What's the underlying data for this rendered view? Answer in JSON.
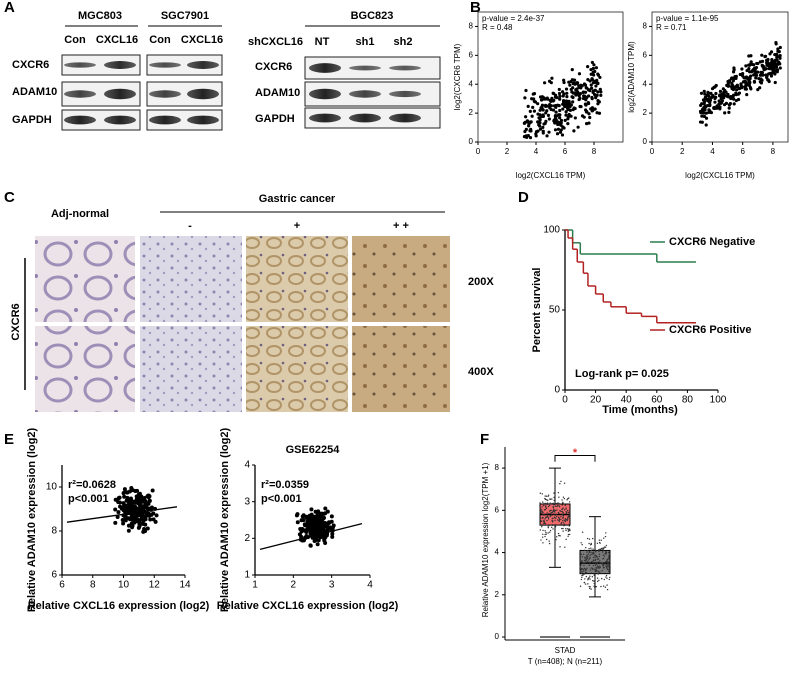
{
  "panels": {
    "A": {
      "label": "A",
      "left": {
        "lines": [
          {
            "name": "MGC803",
            "conditions": [
              "Con",
              "CXCL16"
            ]
          },
          {
            "name": "SGC7901",
            "conditions": [
              "Con",
              "CXCL16"
            ]
          }
        ],
        "rows": [
          "CXCR6",
          "ADAM10",
          "GAPDH"
        ]
      },
      "right": {
        "line": "BGC823",
        "treatment": "shCXCL16",
        "conditions": [
          "NT",
          "sh1",
          "sh2"
        ],
        "rows": [
          "CXCR6",
          "ADAM10",
          "GAPDH"
        ]
      }
    },
    "B": {
      "label": "B",
      "plots": [
        {
          "stats": [
            "p-value = 2.4e-37",
            "R = 0.48"
          ],
          "y_label": "log2(CXCR6 TPM)",
          "x_label": "log2(CXCL16 TPM)",
          "xlim": [
            0,
            10
          ],
          "ylim": [
            0,
            9
          ],
          "xticks": [
            0,
            2,
            4,
            6,
            8
          ],
          "yticks": [
            0,
            2,
            4,
            6,
            8
          ]
        },
        {
          "stats": [
            "p-value = 1.1e-95",
            "R = 0.71"
          ],
          "y_label": "log2(ADAM10 TPM)",
          "x_label": "log2(CXCL16 TPM)",
          "xlim": [
            0,
            9
          ],
          "ylim": [
            0,
            9
          ],
          "xticks": [
            0,
            2,
            4,
            6,
            8
          ],
          "yticks": [
            0,
            2,
            4,
            6,
            8
          ]
        }
      ]
    },
    "C": {
      "label": "C",
      "group": "Gastric cancer",
      "columns": [
        "Adj-normal",
        "-",
        "+",
        "+ +"
      ],
      "magnifications": [
        "200X",
        "400X"
      ],
      "stain": "CXCR6"
    },
    "D": {
      "label": "D",
      "chart_data": {
        "type": "line",
        "y_label": "Percent survival",
        "x_label": "Time (months)",
        "xlim": [
          0,
          100
        ],
        "ylim": [
          0,
          100
        ],
        "xticks": [
          0,
          20,
          40,
          60,
          80,
          100
        ],
        "yticks": [
          0,
          50,
          100
        ],
        "annotation": "Log-rank p= 0.025",
        "series": [
          {
            "name": "CXCR6 Negative",
            "color": "#2e7d4f",
            "x": [
              0,
              5,
              10,
              60,
              85
            ],
            "values": [
              100,
              92,
              85,
              80,
              80
            ]
          },
          {
            "name": "CXCR6 Positive",
            "color": "#b22222",
            "x": [
              0,
              2,
              5,
              8,
              12,
              15,
              20,
              25,
              30,
              40,
              50,
              60,
              85
            ],
            "values": [
              100,
              95,
              88,
              80,
              73,
              65,
              60,
              55,
              52,
              48,
              46,
              42,
              42
            ]
          }
        ]
      }
    },
    "E": {
      "label": "E",
      "plots": [
        {
          "title": null,
          "stats": [
            "r²=0.0628",
            "p<0.001"
          ],
          "y_label": "Relative ADAM10 expression (log2)",
          "x_label": "Relative CXCL16 expression (log2)",
          "xlim": [
            6,
            14
          ],
          "ylim": [
            6,
            11
          ],
          "xticks": [
            6,
            8,
            10,
            12,
            14
          ],
          "yticks": [
            6,
            8,
            10
          ]
        },
        {
          "title": "GSE62254",
          "stats": [
            "r²=0.0359",
            "p<0.001"
          ],
          "y_label": "Relative ADAM10 expression (log2)",
          "x_label": "Relative CXCL16 expression (log2)",
          "xlim": [
            1,
            4
          ],
          "ylim": [
            1,
            4
          ],
          "xticks": [
            1,
            2,
            3,
            4
          ],
          "yticks": [
            1,
            2,
            3,
            4
          ]
        }
      ]
    },
    "F": {
      "label": "F",
      "chart_data": {
        "type": "box",
        "y_label": "Relative ADAM10 expression log2(TPM +1)",
        "x_label": "STAD",
        "groups_label": "T (n=408); N (n=211)",
        "significance": "*",
        "ylim": [
          0,
          9
        ],
        "yticks": [
          0,
          2,
          4,
          6,
          8
        ],
        "series": [
          {
            "name": "T",
            "color": "#f0696b",
            "min": 3.3,
            "q1": 5.3,
            "median": 5.8,
            "q3": 6.3,
            "max": 8.0
          },
          {
            "name": "N",
            "color": "#7a7a7a",
            "min": 1.9,
            "q1": 3.0,
            "median": 3.5,
            "q3": 4.1,
            "max": 5.7
          }
        ]
      }
    }
  }
}
